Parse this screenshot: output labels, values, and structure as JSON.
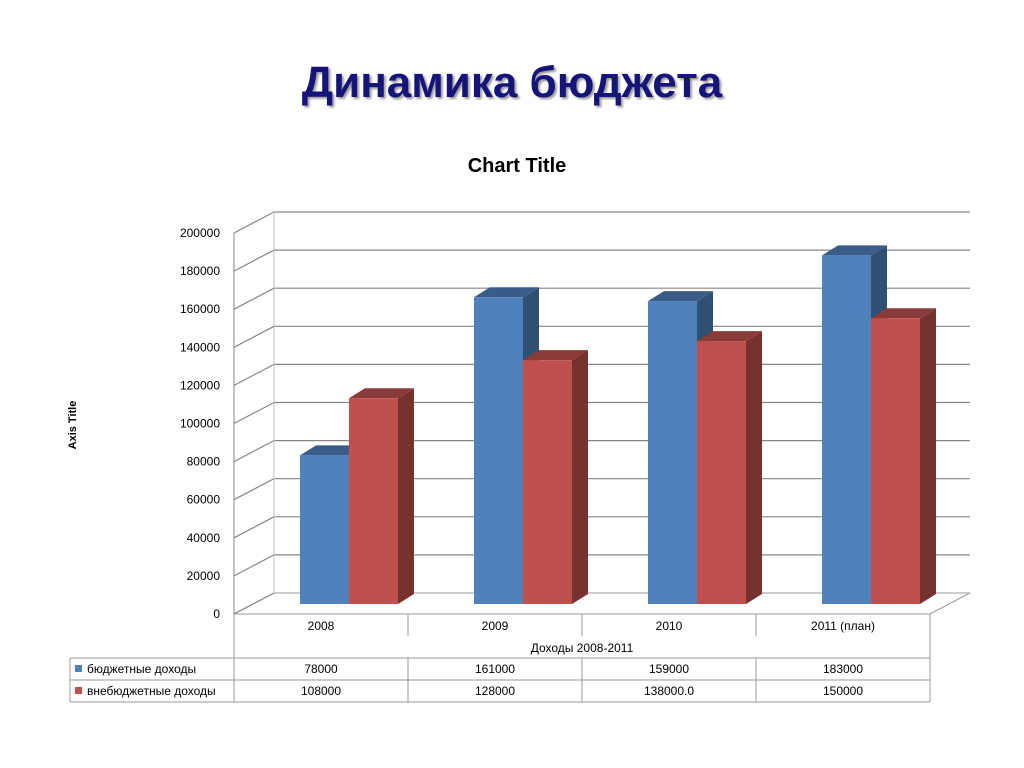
{
  "slide": {
    "title": "Динамика бюджета"
  },
  "chart_data": {
    "type": "bar",
    "title": "Chart Title",
    "xlabel": "Доходы 2008-2011",
    "ylabel": "Axis Title",
    "ylim": [
      0,
      200000
    ],
    "yticks": [
      0,
      20000,
      40000,
      60000,
      80000,
      100000,
      120000,
      140000,
      160000,
      180000,
      200000
    ],
    "grid": true,
    "three_d": true,
    "legend": "data-table",
    "categories": [
      "2008",
      "2009",
      "2010",
      "2011 (план)"
    ],
    "series": [
      {
        "name": "бюджетные доходы",
        "values": [
          78000,
          161000,
          159000,
          183000
        ],
        "color": "#4f81bd",
        "table_labels": [
          "78000",
          "161000",
          "159000",
          "183000"
        ]
      },
      {
        "name": "внебюджетные доходы",
        "values": [
          108000,
          128000,
          138000,
          150000
        ],
        "color": "#c0504d",
        "table_labels": [
          "108000",
          "128000",
          "138000.0",
          "150000"
        ]
      }
    ]
  }
}
